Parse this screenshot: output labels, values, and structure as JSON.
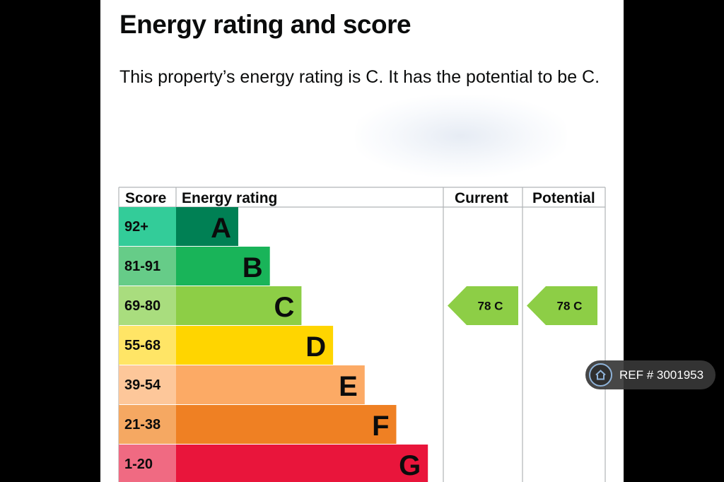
{
  "heading": "Energy rating and score",
  "description": "This property’s energy rating is C. It has the potential to be C.",
  "chart_data": {
    "type": "bar",
    "columns": [
      "Score",
      "Energy rating",
      "Current",
      "Potential"
    ],
    "bands": [
      {
        "score": "92+",
        "letter": "A",
        "color": "#008054",
        "score_color": "#33cc99"
      },
      {
        "score": "81-91",
        "letter": "B",
        "color": "#19b459",
        "score_color": "#66cc88"
      },
      {
        "score": "69-80",
        "letter": "C",
        "color": "#8dce46",
        "score_color": "#a9dd7e"
      },
      {
        "score": "55-68",
        "letter": "D",
        "color": "#ffd500",
        "score_color": "#ffe566"
      },
      {
        "score": "39-54",
        "letter": "E",
        "color": "#fcaa65",
        "score_color": "#fdc79a"
      },
      {
        "score": "21-38",
        "letter": "F",
        "color": "#ef8023",
        "score_color": "#f5a862"
      },
      {
        "score": "1-20",
        "letter": "G",
        "color": "#e9153b",
        "score_color": "#f06a82"
      }
    ],
    "current": {
      "value": 78,
      "letter": "C",
      "label": "78 C"
    },
    "potential": {
      "value": 78,
      "letter": "C",
      "label": "78 C"
    }
  },
  "reference": {
    "icon": "home-icon",
    "label": "REF # 3001953"
  }
}
